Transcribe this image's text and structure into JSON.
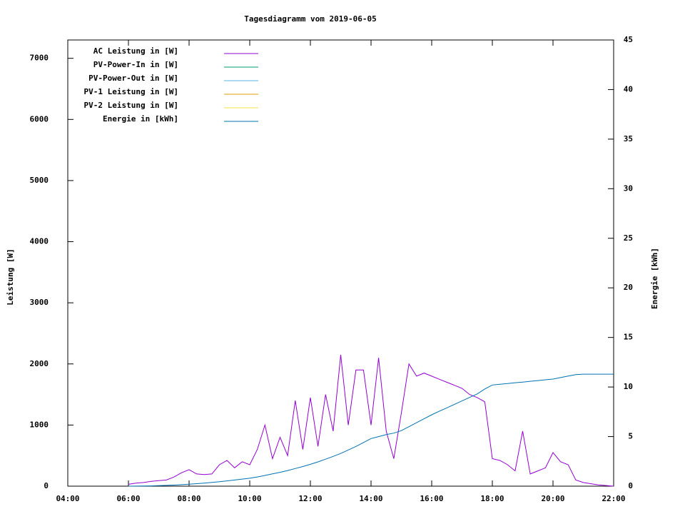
{
  "chart_data": {
    "type": "line",
    "title": "Tagesdiagramm vom 2019-06-05",
    "ylabel": "Leistung [W]",
    "y2label": "Energie [kWh]",
    "x": [
      4,
      4.25,
      4.5,
      4.75,
      5,
      5.25,
      5.5,
      5.75,
      6,
      6.25,
      6.5,
      6.75,
      7,
      7.25,
      7.5,
      7.75,
      8,
      8.25,
      8.5,
      8.75,
      9,
      9.25,
      9.5,
      9.75,
      10,
      10.25,
      10.5,
      10.75,
      11,
      11.25,
      11.5,
      11.75,
      12,
      12.25,
      12.5,
      12.75,
      13,
      13.25,
      13.5,
      13.75,
      14,
      14.25,
      14.5,
      14.75,
      15,
      15.25,
      15.5,
      15.75,
      16,
      16.25,
      16.5,
      16.75,
      17,
      17.25,
      17.5,
      17.75,
      18,
      18.25,
      18.5,
      18.75,
      19,
      19.25,
      19.5,
      19.75,
      20,
      20.25,
      20.5,
      20.75,
      21,
      21.25,
      21.5,
      21.75,
      22
    ],
    "xlim": [
      4,
      22
    ],
    "xticks": [
      {
        "value": 4,
        "label": "04:00"
      },
      {
        "value": 6,
        "label": "06:00"
      },
      {
        "value": 8,
        "label": "08:00"
      },
      {
        "value": 10,
        "label": "10:00"
      },
      {
        "value": 12,
        "label": "12:00"
      },
      {
        "value": 14,
        "label": "14:00"
      },
      {
        "value": 16,
        "label": "16:00"
      },
      {
        "value": 18,
        "label": "18:00"
      },
      {
        "value": 20,
        "label": "20:00"
      },
      {
        "value": 22,
        "label": "22:00"
      }
    ],
    "ylim": [
      0,
      7300
    ],
    "yticks": [
      0,
      1000,
      2000,
      3000,
      4000,
      5000,
      6000,
      7000
    ],
    "y2lim": [
      0,
      45
    ],
    "y2ticks": [
      0,
      5,
      10,
      15,
      20,
      25,
      30,
      35,
      40,
      45
    ],
    "legend": "upper left",
    "series": [
      {
        "name": "AC Leistung in [W]",
        "color": "#9400d3",
        "values": [
          null,
          null,
          null,
          null,
          null,
          null,
          null,
          null,
          30,
          50,
          60,
          80,
          90,
          100,
          150,
          220,
          270,
          200,
          190,
          200,
          350,
          420,
          300,
          400,
          350,
          600,
          1000,
          450,
          800,
          500,
          1400,
          600,
          1450,
          650,
          1500,
          900,
          2150,
          1000,
          1900,
          1900,
          1000,
          2100,
          900,
          450,
          1200,
          2000,
          1800,
          1850,
          1800,
          1750,
          1700,
          1650,
          1600,
          1500,
          1450,
          1380,
          450,
          420,
          350,
          250,
          900,
          200,
          250,
          300,
          550,
          400,
          350,
          100,
          60,
          40,
          20,
          10,
          0
        ]
      },
      {
        "name": "PV-Power-In in [W]",
        "color": "#009e73"
      },
      {
        "name": "PV-Power-Out in [W]",
        "color": "#56b4e9"
      },
      {
        "name": "PV-1 Leistung in [W]",
        "color": "#e69f00"
      },
      {
        "name": "PV-2 Leistung in [W]",
        "color": "#f0e442"
      },
      {
        "name": "Energie in [kWh]",
        "color": "#0072b2",
        "axis": "y2",
        "values": [
          null,
          null,
          null,
          null,
          null,
          null,
          null,
          null,
          0,
          0.01,
          0.02,
          0.03,
          0.05,
          0.08,
          0.11,
          0.15,
          0.2,
          0.25,
          0.31,
          0.38,
          0.45,
          0.53,
          0.62,
          0.71,
          0.8,
          0.93,
          1.08,
          1.24,
          1.4,
          1.58,
          1.78,
          1.98,
          2.2,
          2.45,
          2.72,
          3.0,
          3.3,
          3.65,
          4.0,
          4.4,
          4.8,
          5.0,
          5.2,
          5.35,
          5.6,
          6.0,
          6.4,
          6.8,
          7.2,
          7.55,
          7.9,
          8.25,
          8.6,
          8.95,
          9.3,
          9.8,
          10.2,
          10.28,
          10.35,
          10.43,
          10.5,
          10.58,
          10.65,
          10.73,
          10.8,
          10.95,
          11.1,
          11.25,
          11.3,
          11.3,
          11.3,
          11.3,
          11.3
        ]
      }
    ]
  }
}
